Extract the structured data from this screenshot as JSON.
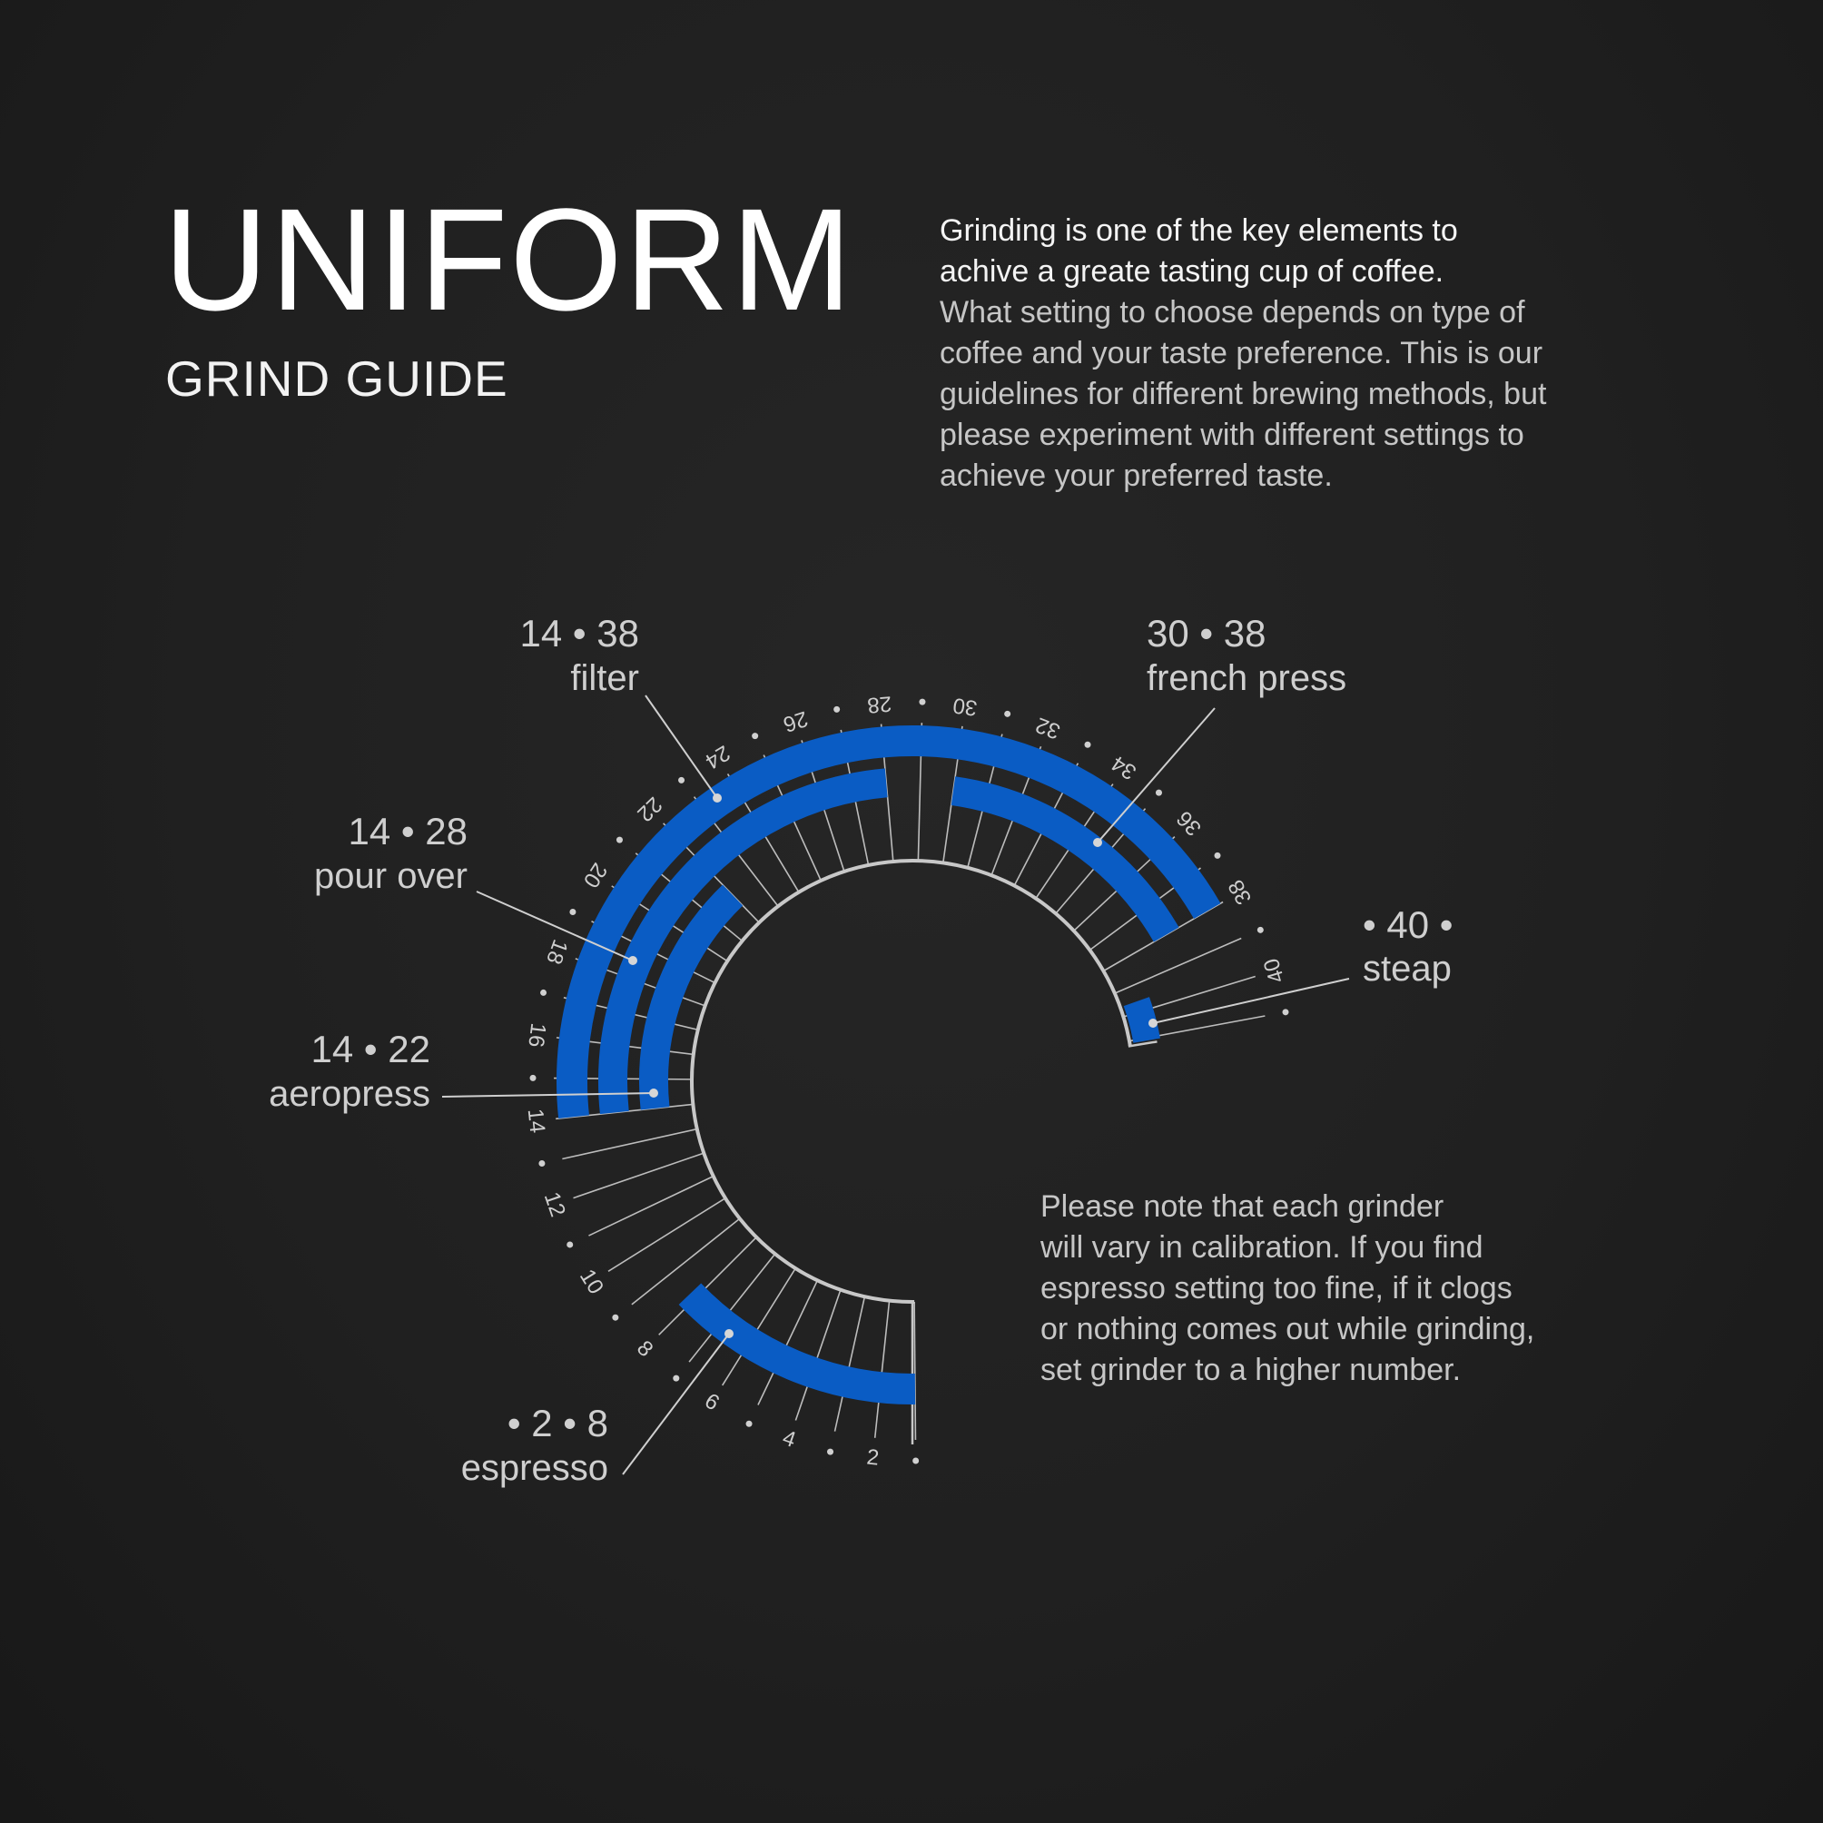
{
  "header": {
    "title": "UNIFORM",
    "subtitle": "GRIND GUIDE"
  },
  "intro": {
    "lines": [
      "Grinding is one of the key elements to",
      "achive a greate tasting cup of coffee.",
      "What setting to choose depends on type of",
      "coffee and your taste preference. This is our",
      "guidelines for different brewing methods, but",
      "please experiment with different settings to",
      "achieve your preferred taste."
    ]
  },
  "note": {
    "lines": [
      "Please note that each grinder",
      "will vary in calibration. If you find",
      "espresso setting too fine, if it clogs",
      "or nothing comes out while grinding,",
      "set grinder to a higher number."
    ]
  },
  "colors": {
    "accent": "#0a5cc4",
    "scale": "#c8c8c8",
    "background": "#222222"
  },
  "chart_data": {
    "type": "radial-range",
    "scale": {
      "min": 1,
      "max": 41,
      "tick_labels": [
        2,
        4,
        6,
        8,
        10,
        12,
        14,
        16,
        18,
        20,
        22,
        24,
        26,
        28,
        30,
        32,
        34,
        36,
        38,
        40
      ]
    },
    "series": [
      {
        "name": "espresso",
        "min": 2,
        "max": 8,
        "range_text": "• 2 • 8"
      },
      {
        "name": "aeropress",
        "min": 14,
        "max": 22,
        "range_text": "14 • 22"
      },
      {
        "name": "pour over",
        "min": 14,
        "max": 28,
        "range_text": "14 • 28"
      },
      {
        "name": "filter",
        "min": 14,
        "max": 38,
        "range_text": "14 • 38"
      },
      {
        "name": "french press",
        "min": 30,
        "max": 38,
        "range_text": "30 • 38"
      },
      {
        "name": "steap",
        "min": 40,
        "max": 40,
        "range_text": "• 40 •"
      }
    ]
  }
}
